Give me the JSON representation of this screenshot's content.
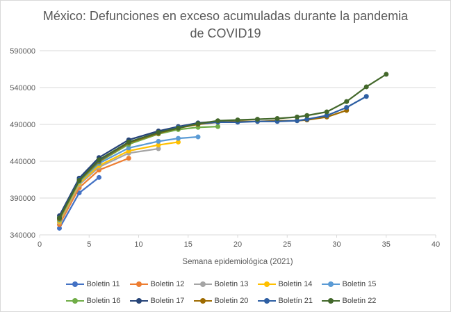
{
  "chart_data": {
    "type": "line",
    "title_line1": "México: Defunciones en exceso acumuladas durante la pandemia",
    "title_line2": "de COVID19",
    "xlabel": "Semana epidemiológica (2021)",
    "ylabel": "",
    "xlim": [
      0,
      40
    ],
    "ylim": [
      340000,
      590000
    ],
    "xticks": [
      0,
      5,
      10,
      15,
      20,
      25,
      30,
      35,
      40
    ],
    "yticks": [
      340000,
      390000,
      440000,
      490000,
      540000,
      590000
    ],
    "grid": "horizontal",
    "legend_position": "bottom",
    "series": [
      {
        "name": "Boletin 11",
        "color": "#4472c4",
        "x": [
          2,
          4,
          6
        ],
        "y": [
          349000,
          397000,
          418000
        ]
      },
      {
        "name": "Boletin 12",
        "color": "#ed7d31",
        "x": [
          2,
          4,
          6,
          9
        ],
        "y": [
          354000,
          404000,
          428000,
          444000
        ]
      },
      {
        "name": "Boletin 13",
        "color": "#a5a5a5",
        "x": [
          2,
          4,
          6,
          9,
          12
        ],
        "y": [
          357000,
          408000,
          432000,
          451000,
          457000
        ]
      },
      {
        "name": "Boletin 14",
        "color": "#ffc000",
        "x": [
          2,
          4,
          6,
          9,
          12,
          14
        ],
        "y": [
          358000,
          410000,
          434000,
          454000,
          462000,
          466000
        ]
      },
      {
        "name": "Boletin 15",
        "color": "#5b9bd5",
        "x": [
          2,
          4,
          6,
          9,
          12,
          14,
          16
        ],
        "y": [
          360000,
          412000,
          437000,
          458000,
          467000,
          471000,
          473000
        ]
      },
      {
        "name": "Boletin 16",
        "color": "#70ad47",
        "x": [
          2,
          4,
          6,
          9,
          12,
          14,
          16,
          18
        ],
        "y": [
          361000,
          413000,
          439000,
          463000,
          477000,
          483000,
          486000,
          487000
        ]
      },
      {
        "name": "Boletin 17",
        "color": "#264478",
        "x": [
          2,
          4,
          6,
          9,
          12,
          14,
          16,
          18
        ],
        "y": [
          366000,
          417000,
          445000,
          469000,
          481000,
          487000,
          492000,
          494000
        ]
      },
      {
        "name": "Boletin 20",
        "color": "#9e6b00",
        "x": [
          2,
          4,
          6,
          9,
          12,
          14,
          16,
          18,
          20,
          22,
          24,
          26,
          27,
          29,
          31
        ],
        "y": [
          362000,
          414000,
          440000,
          465000,
          478000,
          485000,
          490000,
          493000,
          494000,
          494000,
          495000,
          495000,
          496000,
          500000,
          509000
        ]
      },
      {
        "name": "Boletín 21",
        "color": "#2e5fa3",
        "x": [
          2,
          4,
          6,
          9,
          12,
          14,
          16,
          18,
          20,
          22,
          24,
          26,
          27,
          29,
          31,
          33
        ],
        "y": [
          363000,
          415000,
          441000,
          466000,
          479000,
          486000,
          491000,
          493000,
          493000,
          494000,
          494000,
          495000,
          497000,
          502000,
          513000,
          528000
        ]
      },
      {
        "name": "Boletin 22",
        "color": "#43682b",
        "x": [
          2,
          4,
          6,
          9,
          12,
          14,
          16,
          18,
          20,
          22,
          24,
          26,
          27,
          29,
          31,
          33,
          35
        ],
        "y": [
          363000,
          414000,
          442000,
          466000,
          479000,
          485000,
          491000,
          495000,
          496000,
          497000,
          498000,
          500000,
          502000,
          507000,
          521000,
          541000,
          558000
        ]
      }
    ]
  }
}
